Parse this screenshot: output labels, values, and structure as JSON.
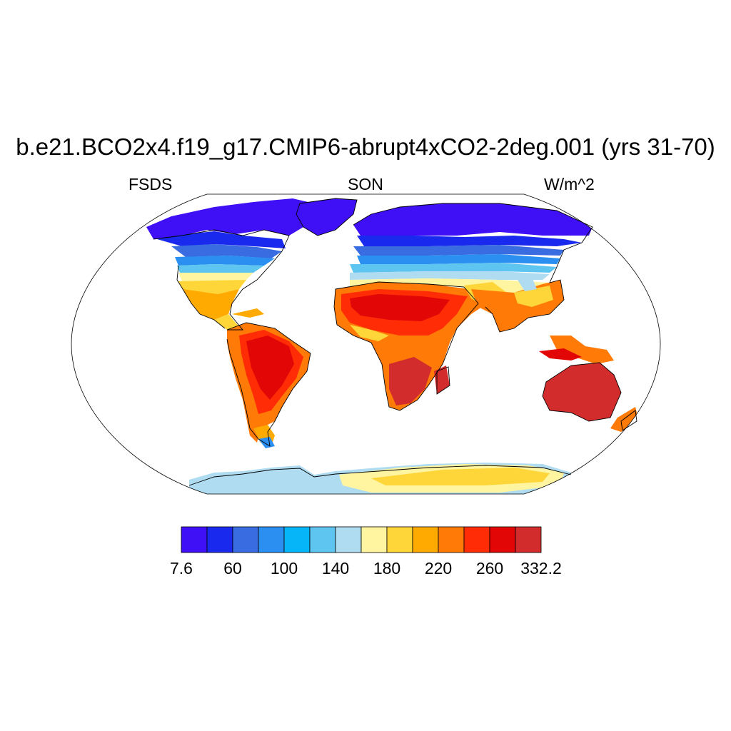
{
  "title": "b.e21.BCO2x4.f19_g17.CMIP6-abrupt4xCO2-2deg.001 (yrs 31-70)",
  "left_subtitle": "FSDS",
  "center_subtitle": "SON",
  "right_subtitle": "W/m^2",
  "projection": "Robinson",
  "colorbar": {
    "colors": [
      "#3f10f5",
      "#1a29ee",
      "#3a6ce1",
      "#2a8ff0",
      "#06b5f8",
      "#5dc5f0",
      "#b0dcf2",
      "#fff5a0",
      "#ffd63a",
      "#ffaa00",
      "#ff7a06",
      "#ff2c06",
      "#e30606",
      "#d32c2c"
    ],
    "tick_labels": [
      "7.6",
      "60",
      "100",
      "140",
      "180",
      "220",
      "260",
      "332.2"
    ]
  }
}
